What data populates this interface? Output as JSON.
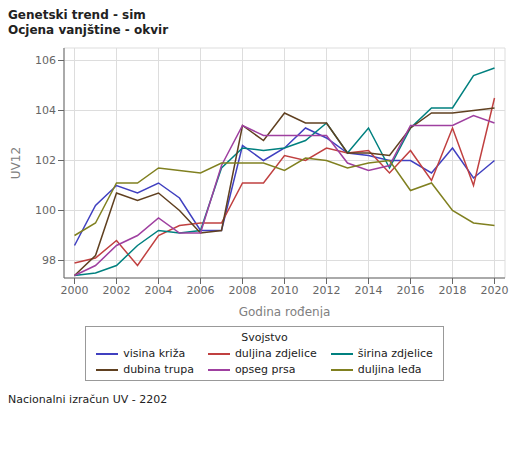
{
  "chart_data": {
    "type": "line",
    "title": "Genetski trend - sim",
    "subtitle": "Ocjena vanjštine - okvir",
    "x_label": "Godina rođenja",
    "y_label": "UV12",
    "annotations": [
      "Nacionalni izračun UV - 2202"
    ],
    "legend_title": "Svojstvo",
    "grid": true,
    "xlim": [
      1999.5,
      2020.5
    ],
    "ylim": [
      97.3,
      106.5
    ],
    "xticks": [
      2000,
      2002,
      2004,
      2006,
      2008,
      2010,
      2012,
      2014,
      2016,
      2018,
      2020
    ],
    "yticks": [
      98,
      100,
      102,
      104,
      106
    ],
    "x": [
      2000,
      2001,
      2002,
      2003,
      2004,
      2005,
      2006,
      2007,
      2008,
      2009,
      2010,
      2011,
      2012,
      2013,
      2014,
      2015,
      2016,
      2017,
      2018,
      2019,
      2020
    ],
    "series": [
      {
        "name": "visina križa",
        "color": "#4040c0",
        "values": [
          98.6,
          100.2,
          101.0,
          100.7,
          101.1,
          100.5,
          99.2,
          99.2,
          102.6,
          102.0,
          102.5,
          103.3,
          102.9,
          102.3,
          102.2,
          102.0,
          102.0,
          101.5,
          102.5,
          101.3,
          102.0
        ]
      },
      {
        "name": "duljina zdjelice",
        "color": "#c04040",
        "values": [
          97.9,
          98.1,
          98.8,
          97.8,
          99.0,
          99.4,
          99.5,
          99.5,
          101.1,
          101.1,
          102.2,
          102.0,
          102.5,
          102.3,
          102.4,
          101.5,
          102.4,
          101.2,
          103.3,
          101.0,
          104.5
        ]
      },
      {
        "name": "širina zdjelice",
        "color": "#00807f",
        "values": [
          97.4,
          97.5,
          97.8,
          98.6,
          99.2,
          99.1,
          99.2,
          101.7,
          102.5,
          102.4,
          102.5,
          102.8,
          103.5,
          102.3,
          103.3,
          101.7,
          103.3,
          104.1,
          104.1,
          105.4,
          105.7
        ]
      },
      {
        "name": "dubina trupa",
        "color": "#604020",
        "values": [
          97.4,
          98.2,
          100.7,
          100.4,
          100.7,
          100.0,
          99.1,
          99.2,
          103.4,
          102.8,
          103.9,
          103.5,
          103.5,
          102.3,
          102.3,
          102.2,
          103.3,
          103.9,
          103.9,
          104.0,
          104.1
        ]
      },
      {
        "name": "opseg prsa",
        "color": "#9f40a0",
        "values": [
          97.4,
          97.8,
          98.6,
          99.0,
          99.7,
          99.1,
          99.1,
          101.8,
          103.4,
          103.0,
          103.0,
          103.0,
          103.0,
          101.9,
          101.6,
          101.8,
          103.4,
          103.4,
          103.4,
          103.8,
          103.5
        ]
      },
      {
        "name": "duljina leđa",
        "color": "#808020",
        "values": [
          99.0,
          99.5,
          101.1,
          101.1,
          101.7,
          101.6,
          101.5,
          101.9,
          101.9,
          101.9,
          101.6,
          102.1,
          102.0,
          101.7,
          101.9,
          102.0,
          100.8,
          101.1,
          100.0,
          99.5,
          99.4
        ]
      }
    ]
  }
}
